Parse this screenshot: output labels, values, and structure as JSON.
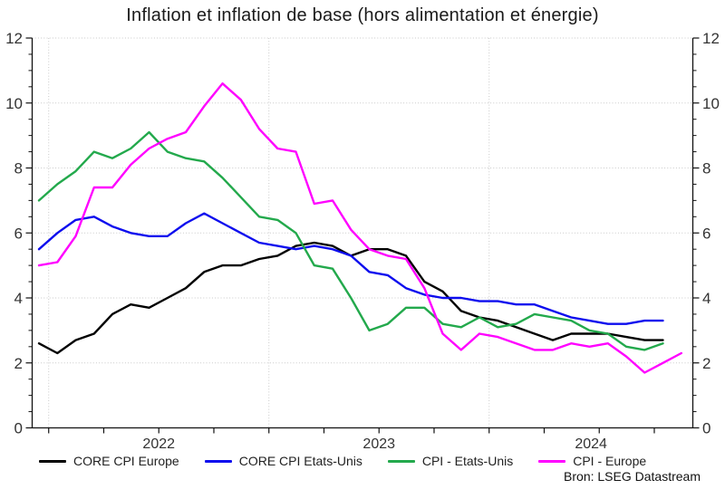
{
  "title": "Inflation et inflation de base (hors alimentation et énergie)",
  "source_note": "Bron: LSEG Datastream",
  "chart_data": {
    "type": "line",
    "x": [
      "2021-12",
      "2022-01",
      "2022-02",
      "2022-03",
      "2022-04",
      "2022-05",
      "2022-06",
      "2022-07",
      "2022-08",
      "2022-09",
      "2022-10",
      "2022-11",
      "2022-12",
      "2023-01",
      "2023-02",
      "2023-03",
      "2023-04",
      "2023-05",
      "2023-06",
      "2023-07",
      "2023-08",
      "2023-09",
      "2023-10",
      "2023-11",
      "2023-12",
      "2024-01",
      "2024-02",
      "2024-03",
      "2024-04",
      "2024-05",
      "2024-06",
      "2024-07",
      "2024-08",
      "2024-09",
      "2024-10",
      "2024-11"
    ],
    "series": [
      {
        "name": "CORE CPI Europe",
        "color": "#000000",
        "values": [
          2.6,
          2.3,
          2.7,
          2.9,
          3.5,
          3.8,
          3.7,
          4.0,
          4.3,
          4.8,
          5.0,
          5.0,
          5.2,
          5.3,
          5.6,
          5.7,
          5.6,
          5.3,
          5.5,
          5.5,
          5.3,
          4.5,
          4.2,
          3.6,
          3.4,
          3.3,
          3.1,
          2.9,
          2.7,
          2.9,
          2.9,
          2.9,
          2.8,
          2.7,
          2.7,
          null
        ]
      },
      {
        "name": "CORE CPI Etats-Unis",
        "color": "#0d0dee",
        "values": [
          5.5,
          6.0,
          6.4,
          6.5,
          6.2,
          6.0,
          5.9,
          5.9,
          6.3,
          6.6,
          6.3,
          6.0,
          5.7,
          5.6,
          5.5,
          5.6,
          5.5,
          5.3,
          4.8,
          4.7,
          4.3,
          4.1,
          4.0,
          4.0,
          3.9,
          3.9,
          3.8,
          3.8,
          3.6,
          3.4,
          3.3,
          3.2,
          3.2,
          3.3,
          3.3,
          null
        ]
      },
      {
        "name": "CPI - Etats-Unis",
        "color": "#23a94c",
        "values": [
          7.0,
          7.5,
          7.9,
          8.5,
          8.3,
          8.6,
          9.1,
          8.5,
          8.3,
          8.2,
          7.7,
          7.1,
          6.5,
          6.4,
          6.0,
          5.0,
          4.9,
          4.0,
          3.0,
          3.2,
          3.7,
          3.7,
          3.2,
          3.1,
          3.4,
          3.1,
          3.2,
          3.5,
          3.4,
          3.3,
          3.0,
          2.9,
          2.5,
          2.4,
          2.6,
          null
        ]
      },
      {
        "name": "CPI - Europe",
        "color": "#ff00ff",
        "values": [
          5.0,
          5.1,
          5.9,
          7.4,
          7.4,
          8.1,
          8.6,
          8.9,
          9.1,
          9.9,
          10.6,
          10.1,
          9.2,
          8.6,
          8.5,
          6.9,
          7.0,
          6.1,
          5.5,
          5.3,
          5.2,
          4.3,
          2.9,
          2.4,
          2.9,
          2.8,
          2.6,
          2.4,
          2.4,
          2.6,
          2.5,
          2.6,
          2.2,
          1.7,
          2.0,
          2.3
        ]
      }
    ],
    "ylim": [
      0,
      12
    ],
    "y_major_ticks": [
      0,
      2,
      4,
      6,
      8,
      10,
      12
    ],
    "y_minor_step": 0.5,
    "y_axis_sides": "both",
    "x_year_labels": [
      "2022",
      "2023",
      "2024"
    ],
    "x_tick_interval": "quarter",
    "grid_horizontal_at": [
      2,
      4,
      6,
      8,
      10,
      12
    ],
    "grid_vertical_at": [
      "2022-01",
      "2023-01",
      "2024-01"
    ],
    "grid_style": "dotted",
    "legend_position": "bottom",
    "xlabel": "",
    "ylabel": ""
  }
}
